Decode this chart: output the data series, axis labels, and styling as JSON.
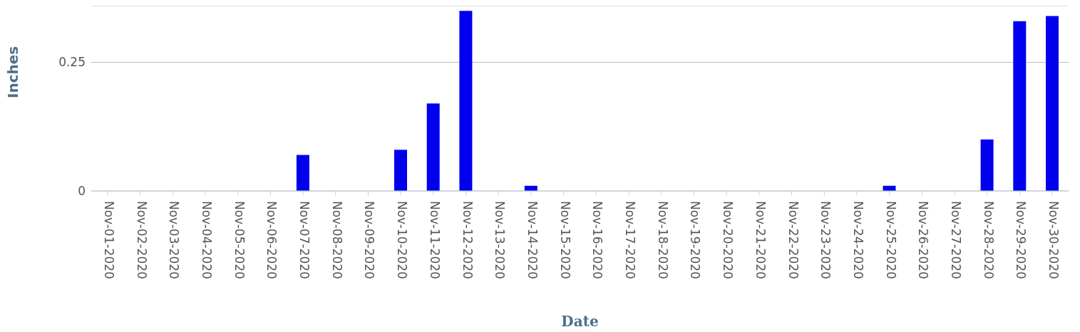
{
  "chart_data": {
    "type": "bar",
    "xlabel": "Date",
    "ylabel": "Inches",
    "categories": [
      "Nov-01-2020",
      "Nov-02-2020",
      "Nov-03-2020",
      "Nov-04-2020",
      "Nov-05-2020",
      "Nov-06-2020",
      "Nov-07-2020",
      "Nov-08-2020",
      "Nov-09-2020",
      "Nov-10-2020",
      "Nov-11-2020",
      "Nov-12-2020",
      "Nov-13-2020",
      "Nov-14-2020",
      "Nov-15-2020",
      "Nov-16-2020",
      "Nov-17-2020",
      "Nov-18-2020",
      "Nov-19-2020",
      "Nov-20-2020",
      "Nov-21-2020",
      "Nov-22-2020",
      "Nov-23-2020",
      "Nov-24-2020",
      "Nov-25-2020",
      "Nov-26-2020",
      "Nov-27-2020",
      "Nov-28-2020",
      "Nov-29-2020",
      "Nov-30-2020"
    ],
    "values": [
      0,
      0,
      0,
      0,
      0,
      0,
      0.07,
      0,
      0,
      0.08,
      0.17,
      0.35,
      0,
      0.01,
      0,
      0,
      0,
      0,
      0,
      0,
      0,
      0,
      0,
      0,
      0.01,
      0,
      0,
      0.1,
      0.33,
      0.34
    ],
    "color": "#0000ee",
    "ylim": [
      0,
      0.36
    ],
    "yticks": [
      0,
      0.25
    ],
    "grid": "y",
    "legend": false
  }
}
